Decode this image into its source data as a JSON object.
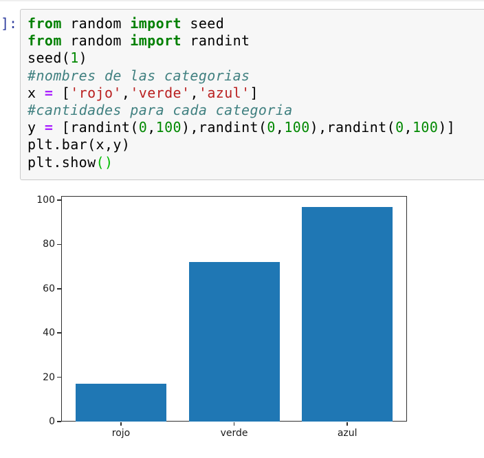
{
  "prompt": {
    "label": "]:",
    "color": "#303F9F"
  },
  "code": {
    "language": "python",
    "lines": [
      [
        [
          "kw",
          "from"
        ],
        [
          "txt",
          " random "
        ],
        [
          "kw",
          "import"
        ],
        [
          "txt",
          " seed"
        ]
      ],
      [
        [
          "kw",
          "from"
        ],
        [
          "txt",
          " random "
        ],
        [
          "kw",
          "import"
        ],
        [
          "txt",
          " randint"
        ]
      ],
      [
        [
          "txt",
          "seed("
        ],
        [
          "num",
          "1"
        ],
        [
          "txt",
          ")"
        ]
      ],
      [
        [
          "com",
          "#nombres de las categorias"
        ]
      ],
      [
        [
          "txt",
          "x "
        ],
        [
          "op",
          "="
        ],
        [
          "txt",
          " ["
        ],
        [
          "str",
          "'rojo'"
        ],
        [
          "txt",
          ","
        ],
        [
          "str",
          "'verde'"
        ],
        [
          "txt",
          ","
        ],
        [
          "str",
          "'azul'"
        ],
        [
          "txt",
          "]"
        ]
      ],
      [
        [
          "com",
          "#cantidades para cada categoria"
        ]
      ],
      [
        [
          "txt",
          "y "
        ],
        [
          "op",
          "="
        ],
        [
          "txt",
          " [randint("
        ],
        [
          "num",
          "0"
        ],
        [
          "txt",
          ","
        ],
        [
          "num",
          "100"
        ],
        [
          "txt",
          "),randint("
        ],
        [
          "num",
          "0"
        ],
        [
          "txt",
          ","
        ],
        [
          "num",
          "100"
        ],
        [
          "txt",
          "),randint("
        ],
        [
          "num",
          "0"
        ],
        [
          "txt",
          ","
        ],
        [
          "num",
          "100"
        ],
        [
          "txt",
          ")]"
        ]
      ],
      [
        [
          "txt",
          "plt.bar(x,y)"
        ]
      ],
      [
        [
          "txt",
          "plt.show"
        ],
        [
          "mb",
          "()"
        ]
      ]
    ]
  },
  "syntax_colors": {
    "kw": "#008000",
    "num": "#008800",
    "str": "#BA2121",
    "com": "#408080",
    "op": "#AA22FF",
    "mb": "#00BB00"
  },
  "chart_data": {
    "type": "bar",
    "categories": [
      "rojo",
      "verde",
      "azul"
    ],
    "values": [
      17,
      72,
      97
    ],
    "title": "",
    "xlabel": "",
    "ylabel": "",
    "ylim": [
      0,
      101.85
    ],
    "yticks": [
      0,
      20,
      40,
      60,
      80,
      100
    ],
    "bar_color": "#1f77b4",
    "grid": false,
    "legend": null
  }
}
